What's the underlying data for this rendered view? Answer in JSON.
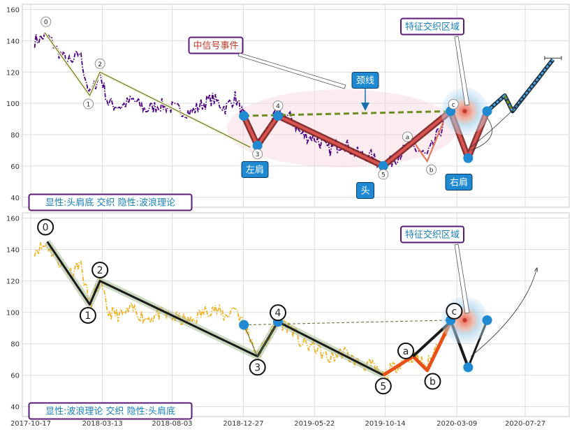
{
  "chart_data": [
    {
      "type": "line",
      "panel": "top",
      "ylim": [
        35,
        162
      ],
      "y_ticks": [
        40,
        60,
        80,
        100,
        120,
        140,
        160
      ],
      "x_ticks": [
        "2017-10-17",
        "2018-03-13",
        "2018-08-03",
        "2018-12-27",
        "2019-05-22",
        "2019-10-14",
        "2020-03-09",
        "2020-07-27"
      ],
      "grid": true,
      "series": [
        {
          "role": "price",
          "color": "#4b0082",
          "style": "dash-dot"
        },
        {
          "role": "wave",
          "color": "#556b2f",
          "points": [
            [
              "2017-11-15",
              145
            ],
            [
              "2018-02-15",
              105
            ],
            [
              "2018-03-08",
              120
            ],
            [
              "2019-01-10",
              72
            ],
            [
              "2019-03-08",
              94
            ],
            [
              "2019-10-10",
              60
            ],
            [
              "2019-12-10",
              76
            ],
            [
              "2020-01-08",
              63
            ],
            [
              "2020-02-25",
              94
            ]
          ]
        },
        {
          "role": "head-shoulders",
          "color": "#c0392b",
          "points": [
            [
              "2018-12-28",
              92
            ],
            [
              "2019-01-25",
              73
            ],
            [
              "2019-03-08",
              92
            ],
            [
              "2019-10-10",
              60
            ],
            [
              "2020-02-25",
              95
            ],
            [
              "2020-04-01",
              65
            ],
            [
              "2020-05-10",
              95
            ]
          ]
        },
        {
          "role": "neckline",
          "color": "#6b8e23",
          "points": [
            [
              "2018-12-28",
              92
            ],
            [
              "2020-02-25",
              95
            ]
          ]
        },
        {
          "role": "projection",
          "color": "#4aa3df",
          "points": [
            [
              "2020-05-10",
              95
            ],
            [
              "2020-06-15",
              105
            ],
            [
              "2020-07-01",
              95
            ],
            [
              "2020-09-22",
              128
            ]
          ]
        }
      ],
      "markers": [
        {
          "label": "0",
          "x": "2017-11-20",
          "y": 145
        },
        {
          "label": "1",
          "x": "2018-02-15",
          "y": 105
        },
        {
          "label": "2",
          "x": "2018-03-08",
          "y": 120
        },
        {
          "label": "3",
          "x": "2019-01-25",
          "y": 73
        },
        {
          "label": "4",
          "x": "2019-03-08",
          "y": 94
        },
        {
          "label": "5",
          "x": "2019-10-10",
          "y": 60
        },
        {
          "label": "a",
          "x": "2019-12-10",
          "y": 76
        },
        {
          "label": "b",
          "x": "2020-01-08",
          "y": 63
        },
        {
          "label": "c",
          "x": "2020-02-25",
          "y": 95
        }
      ],
      "annotations": {
        "left_shoulder": "左肩",
        "head": "头",
        "right_shoulder": "右肩",
        "neckline": "颈线",
        "mid_signal": "中信号事件",
        "feature_zone": "特征交织区域",
        "legend": "显性:头肩底 交织 隐性:波浪理论"
      }
    },
    {
      "type": "line",
      "panel": "bottom",
      "ylim": [
        35,
        162
      ],
      "y_ticks": [
        40,
        60,
        80,
        100,
        120,
        140,
        160
      ],
      "x_ticks": [
        "2017-10-17",
        "2018-03-13",
        "2018-08-03",
        "2018-12-27",
        "2019-05-22",
        "2019-10-14",
        "2020-03-09",
        "2020-07-27"
      ],
      "grid": true,
      "series": [
        {
          "role": "price",
          "color": "#f0b429",
          "style": "dash-dot"
        },
        {
          "role": "wave",
          "color": "#1a1a1a",
          "points": [
            [
              "2017-11-20",
              145
            ],
            [
              "2018-02-15",
              105
            ],
            [
              "2018-03-08",
              120
            ],
            [
              "2019-01-25",
              72
            ],
            [
              "2019-03-08",
              94
            ],
            [
              "2019-10-10",
              60
            ],
            [
              "2019-12-10",
              72
            ],
            [
              "2020-01-08",
              63
            ],
            [
              "2020-02-25",
              94
            ]
          ]
        },
        {
          "role": "head-shoulders",
          "color": "#0f6fa8",
          "points": [
            [
              "2018-12-28",
              92
            ],
            [
              "2020-02-25",
              95
            ],
            [
              "2020-04-01",
              65
            ],
            [
              "2020-05-10",
              95
            ]
          ]
        }
      ],
      "markers": [
        {
          "label": "0",
          "x": "2017-11-20",
          "y": 145
        },
        {
          "label": "1",
          "x": "2018-02-15",
          "y": 105
        },
        {
          "label": "2",
          "x": "2018-03-08",
          "y": 120
        },
        {
          "label": "3",
          "x": "2019-01-25",
          "y": 72
        },
        {
          "label": "4",
          "x": "2019-03-08",
          "y": 94
        },
        {
          "label": "5",
          "x": "2019-10-10",
          "y": 60
        },
        {
          "label": "a",
          "x": "2019-12-10",
          "y": 72
        },
        {
          "label": "b",
          "x": "2020-01-08",
          "y": 63
        },
        {
          "label": "c",
          "x": "2020-02-25",
          "y": 95
        }
      ],
      "annotations": {
        "feature_zone": "特征交织区域",
        "legend": "显性:波浪理论 交织 隐性:头肩底"
      }
    }
  ]
}
